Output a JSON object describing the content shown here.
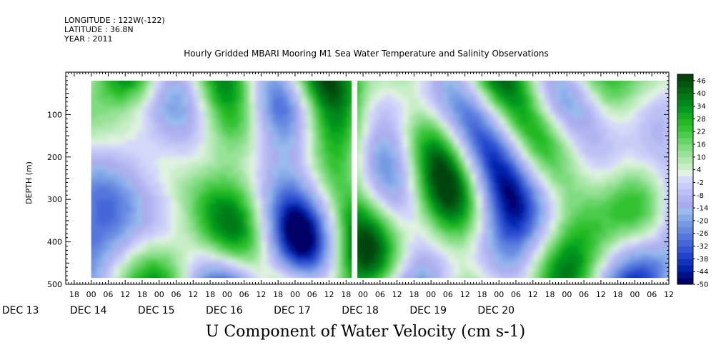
{
  "meta": {
    "longitude": "LONGITUDE : 122W(-122)",
    "latitude": "LATITUDE : 36.8N",
    "year": "YEAR : 2011"
  },
  "chart_data": {
    "type": "heatmap",
    "title": "Hourly Gridded MBARI Mooring M1 Sea Water Temperature and Salinity Observations",
    "xlabel": "U Component of Water Velocity (cm s-1)",
    "ylabel": "DEPTH (m)",
    "ylim": [
      500,
      0
    ],
    "yticks": [
      100,
      200,
      300,
      400,
      500
    ],
    "xlim_hours": [
      -9,
      204
    ],
    "data_range_hours": [
      0,
      204
    ],
    "data_depth_range": [
      20,
      485
    ],
    "hour_ticks": [
      "18",
      "00",
      "06",
      "12",
      "18",
      "00",
      "06",
      "12",
      "18",
      "00",
      "06",
      "12",
      "18",
      "00",
      "06",
      "12",
      "18",
      "00",
      "06",
      "12",
      "18",
      "00",
      "06",
      "12",
      "18",
      "00",
      "06",
      "12",
      "18",
      "00",
      "06",
      "12",
      "18",
      "00",
      "06",
      "12"
    ],
    "date_labels": [
      "DEC 13",
      "DEC 14",
      "DEC 15",
      "DEC 16",
      "DEC 17",
      "DEC 18",
      "DEC 19",
      "DEC 20"
    ],
    "colorbar": {
      "labels": [
        "46",
        "40",
        "34",
        "28",
        "22",
        "16",
        "10",
        "4",
        "-2",
        "-8",
        "-14",
        "-20",
        "-26",
        "-32",
        "-38",
        "-44",
        "-50"
      ],
      "levels": [
        -50,
        -47,
        -44,
        -41,
        -38,
        -35,
        -32,
        -29,
        -26,
        -23,
        -20,
        -17,
        -14,
        -11,
        -8,
        -5,
        -2,
        1,
        4,
        7,
        10,
        13,
        16,
        19,
        22,
        25,
        28,
        31,
        34,
        37,
        40,
        43,
        46,
        49
      ],
      "colors": [
        "#000066",
        "#00118a",
        "#0022aa",
        "#1133bb",
        "#2244cc",
        "#3355d2",
        "#4466d8",
        "#5577dd",
        "#6688e0",
        "#7799e4",
        "#88aae8",
        "#99bbee",
        "#aaaaee",
        "#b0b4f0",
        "#bcc0f4",
        "#c8ccf6",
        "#d4d8fa",
        "#e0f2e0",
        "#c8eec8",
        "#b0e8b0",
        "#98e298",
        "#80dc80",
        "#66d466",
        "#4ccc4c",
        "#33c233",
        "#22b822",
        "#11aa22",
        "#009a1e",
        "#008a1a",
        "#007a16",
        "#006812",
        "#00560e",
        "#00440a"
      ]
    },
    "gap_hours": [
      92,
      94
    ],
    "field_description": ""
  }
}
